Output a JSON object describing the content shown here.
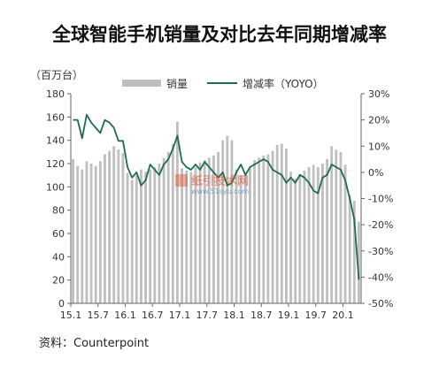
{
  "chart_data": {
    "type": "bar+line",
    "title": "全球智能手机销量及对比去年同期增减率",
    "unit_label": "（百万台）",
    "source": "资料：Counterpoint",
    "watermark": {
      "text": "纸引技术网",
      "url": "www.51syu.com"
    },
    "x_tick_labels": [
      "15.1",
      "15.7",
      "16.1",
      "16.7",
      "17.1",
      "17.7",
      "18.1",
      "18.7",
      "19.1",
      "19.7",
      "20.1"
    ],
    "left_axis": {
      "min": 0,
      "max": 180,
      "step": 20
    },
    "right_axis": {
      "min": -50,
      "max": 30,
      "step": 10,
      "format": "percent"
    },
    "series": [
      {
        "name": "销量",
        "kind": "bar",
        "color": "#bfbfbf",
        "values": [
          124,
          118,
          115,
          122,
          120,
          118,
          122,
          128,
          131,
          135,
          132,
          129,
          112,
          106,
          110,
          115,
          113,
          115,
          117,
          120,
          125,
          130,
          137,
          156,
          116,
          114,
          113,
          117,
          121,
          123,
          125,
          127,
          130,
          140,
          144,
          140,
          115,
          110,
          112,
          116,
          123,
          125,
          127,
          128,
          131,
          136,
          137,
          133,
          113,
          107,
          111,
          114,
          117,
          119,
          117,
          120,
          124,
          135,
          132,
          130,
          119,
          93,
          88,
          70
        ]
      },
      {
        "name": "增减率（YOYO）",
        "kind": "line",
        "color": "#1f6b4f",
        "values": [
          20,
          20,
          13,
          22,
          19,
          17,
          15,
          20,
          19,
          17,
          12,
          12,
          2,
          -2,
          0,
          -5,
          -3,
          3,
          1,
          -1,
          3,
          5,
          9,
          14,
          4,
          2,
          1,
          3,
          1,
          4,
          2,
          0,
          -2,
          0,
          -5,
          -4,
          0,
          3,
          -1,
          2,
          3,
          4,
          5,
          4,
          1,
          0,
          -1,
          -4,
          -2,
          -4,
          -1,
          -2,
          -4,
          -7,
          -8,
          -2,
          -1,
          3,
          2,
          1,
          -3,
          -10,
          -18,
          -41
        ]
      }
    ]
  }
}
